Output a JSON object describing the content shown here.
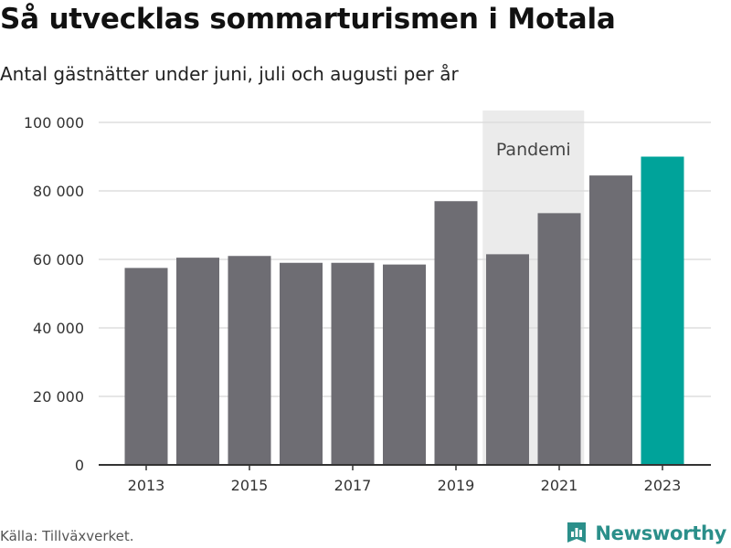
{
  "title": "Så utvecklas sommarturismen i Motala",
  "subtitle": "Antal gästnätter under juni, juli och augusti per år",
  "source": "Källa: Tillväxverket.",
  "brand": {
    "name": "Newsworthy",
    "logo_icon": "bar-chart-logo-icon"
  },
  "colors": {
    "bar": "#6e6d73",
    "highlight": "#00a39a",
    "shade": "#ebebeb",
    "grid": "#dddddd",
    "brand": "#2b8f8a"
  },
  "chart_data": {
    "type": "bar",
    "title": "Så utvecklas sommarturismen i Motala",
    "subtitle": "Antal gästnätter under juni, juli och augusti per år",
    "x": [
      2013,
      2014,
      2015,
      2016,
      2017,
      2018,
      2019,
      2020,
      2021,
      2022,
      2023
    ],
    "values": [
      57500,
      60500,
      61000,
      59000,
      59000,
      58500,
      77000,
      61500,
      73500,
      84500,
      90000
    ],
    "highlight_x": [
      2023
    ],
    "xticks": [
      2013,
      2015,
      2017,
      2019,
      2021,
      2023
    ],
    "xtick_labels": [
      "2013",
      "2015",
      "2017",
      "2019",
      "2021",
      "2023"
    ],
    "yticks": [
      0,
      20000,
      40000,
      60000,
      80000,
      100000
    ],
    "ytick_labels": [
      "0",
      "20 000",
      "40 000",
      "60 000",
      "80 000",
      "100 000"
    ],
    "ylim": [
      0,
      100000
    ],
    "grid": true,
    "xlabel": "",
    "ylabel": "",
    "annotation": {
      "text": "Pandemi",
      "x_range": [
        2020,
        2021
      ]
    }
  }
}
